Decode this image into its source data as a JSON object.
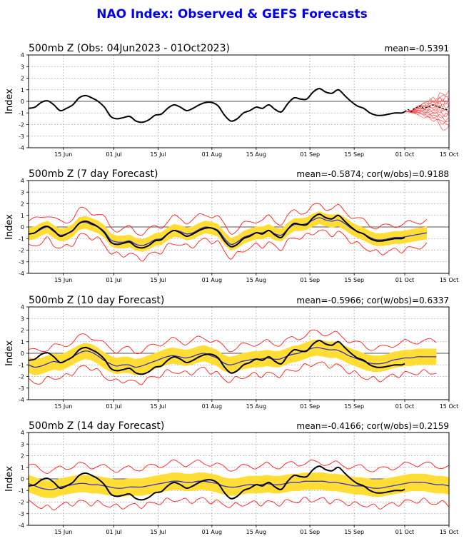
{
  "title": "NAO Index: Observed & GEFS Forecasts",
  "colors": {
    "title": "#0000ee",
    "observed": "#000000",
    "ensemble_mean": "#3333cc",
    "spread_band": "#ffdd33",
    "extreme_lines": "#ff1a1a",
    "ensemble_members": "#ff4d4d"
  },
  "chart_data": [
    {
      "type": "line",
      "title": "500mb Z (Obs: 04Jun2023 - 01Oct2023)",
      "stat": "mean=-0.5391",
      "ylabel": "Index",
      "xlim": [
        "2023-06-04",
        "2023-10-15"
      ],
      "ylim": [
        -4,
        4
      ],
      "yticks": [
        -4,
        -3,
        -2,
        -1,
        0,
        1,
        2,
        3,
        4
      ],
      "xticks": [
        {
          "date": "2023-06-15",
          "label": "15 Jun"
        },
        {
          "date": "2023-07-01",
          "label": "01 Jul"
        },
        {
          "date": "2023-07-15",
          "label": "15 Jul"
        },
        {
          "date": "2023-08-01",
          "label": "01 Aug"
        },
        {
          "date": "2023-08-15",
          "label": "15 Aug"
        },
        {
          "date": "2023-09-01",
          "label": "01 Sep"
        },
        {
          "date": "2023-09-15",
          "label": "15 Sep"
        },
        {
          "date": "2023-10-01",
          "label": "01 Oct"
        },
        {
          "date": "2023-10-15",
          "label": "15 Oct"
        }
      ],
      "grid": true,
      "observed": {
        "x": [
          "2023-06-04",
          "2023-06-06",
          "2023-06-08",
          "2023-06-10",
          "2023-06-12",
          "2023-06-14",
          "2023-06-16",
          "2023-06-18",
          "2023-06-20",
          "2023-06-22",
          "2023-06-24",
          "2023-06-26",
          "2023-06-28",
          "2023-06-30",
          "2023-07-02",
          "2023-07-04",
          "2023-07-06",
          "2023-07-08",
          "2023-07-10",
          "2023-07-12",
          "2023-07-14",
          "2023-07-16",
          "2023-07-18",
          "2023-07-20",
          "2023-07-22",
          "2023-07-24",
          "2023-07-26",
          "2023-07-28",
          "2023-07-30",
          "2023-08-01",
          "2023-08-03",
          "2023-08-05",
          "2023-08-07",
          "2023-08-09",
          "2023-08-11",
          "2023-08-13",
          "2023-08-15",
          "2023-08-17",
          "2023-08-19",
          "2023-08-21",
          "2023-08-23",
          "2023-08-25",
          "2023-08-27",
          "2023-08-29",
          "2023-08-31",
          "2023-09-02",
          "2023-09-04",
          "2023-09-06",
          "2023-09-08",
          "2023-09-10",
          "2023-09-12",
          "2023-09-14",
          "2023-09-16",
          "2023-09-18",
          "2023-09-20",
          "2023-09-22",
          "2023-09-24",
          "2023-09-26",
          "2023-09-28",
          "2023-09-30",
          "2023-10-01"
        ],
        "y": [
          -0.6,
          -0.5,
          -0.1,
          0.05,
          -0.3,
          -0.8,
          -0.6,
          -0.3,
          0.3,
          0.5,
          0.3,
          0.0,
          -0.5,
          -1.3,
          -1.5,
          -1.4,
          -1.3,
          -1.7,
          -1.8,
          -1.6,
          -1.2,
          -1.1,
          -0.6,
          -0.3,
          -0.5,
          -0.8,
          -0.6,
          -0.3,
          -0.1,
          -0.1,
          -0.4,
          -1.2,
          -1.7,
          -1.5,
          -1.0,
          -0.8,
          -0.5,
          -0.6,
          -0.3,
          -0.7,
          -0.9,
          -0.2,
          0.3,
          0.2,
          0.2,
          0.8,
          1.1,
          0.8,
          0.7,
          1.0,
          0.5,
          0.0,
          -0.4,
          -0.6,
          -1.0,
          -1.2,
          -1.2,
          -1.1,
          -1.0,
          -1.0,
          -0.9
        ]
      },
      "ensemble": {
        "x_start": "2023-10-01",
        "x_end": "2023-10-15",
        "mean": [
          -0.9,
          -0.7,
          -0.9,
          -0.6,
          -0.5,
          -0.4,
          -0.6,
          -0.5,
          -0.4,
          -0.3,
          -0.4,
          -0.5,
          -0.6,
          -0.7,
          -0.8
        ],
        "upper": [
          -0.8,
          -0.4,
          -0.3,
          0.2,
          0.5,
          0.8,
          0.9,
          0.6,
          1.0,
          0.8,
          0.6,
          1.0,
          0.9,
          0.8,
          0.7
        ],
        "lower": [
          -1.0,
          -1.0,
          -1.3,
          -1.4,
          -1.6,
          -1.7,
          -1.9,
          -1.8,
          -2.0,
          -2.1,
          -1.9,
          -2.2,
          -2.4,
          -2.3,
          -2.1
        ]
      }
    },
    {
      "type": "line",
      "title": "500mb Z (7 day Forecast)",
      "stat": "mean=-0.5874; cor(w/obs)=0.9188",
      "ylabel": "Index",
      "xlim": [
        "2023-06-04",
        "2023-10-15"
      ],
      "ylim": [
        -4,
        4
      ],
      "yticks": [
        -4,
        -3,
        -2,
        -1,
        0,
        1,
        2,
        3,
        4
      ],
      "xticks": [
        {
          "date": "2023-06-15",
          "label": "15 Jun"
        },
        {
          "date": "2023-07-01",
          "label": "01 Jul"
        },
        {
          "date": "2023-07-15",
          "label": "15 Jul"
        },
        {
          "date": "2023-08-01",
          "label": "01 Aug"
        },
        {
          "date": "2023-08-15",
          "label": "15 Aug"
        },
        {
          "date": "2023-09-01",
          "label": "01 Sep"
        },
        {
          "date": "2023-09-15",
          "label": "15 Sep"
        },
        {
          "date": "2023-10-01",
          "label": "01 Oct"
        },
        {
          "date": "2023-10-15",
          "label": "15 Oct"
        }
      ],
      "grid": true,
      "forecast": {
        "x_start": "2023-06-04",
        "x_end": "2023-10-08",
        "mean": [
          -0.6,
          -0.5,
          -0.2,
          0.0,
          -0.4,
          -0.7,
          -0.6,
          -0.3,
          0.3,
          0.4,
          0.2,
          0.0,
          -0.4,
          -1.1,
          -1.3,
          -1.3,
          -1.2,
          -1.5,
          -1.6,
          -1.4,
          -1.1,
          -1.0,
          -0.6,
          -0.3,
          -0.4,
          -0.6,
          -0.5,
          -0.2,
          0.0,
          -0.1,
          -0.3,
          -1.0,
          -1.5,
          -1.3,
          -0.9,
          -0.7,
          -0.5,
          -0.5,
          -0.3,
          -0.6,
          -0.7,
          -0.2,
          0.2,
          0.2,
          0.3,
          0.6,
          0.8,
          0.6,
          0.5,
          0.6,
          0.3,
          -0.1,
          -0.4,
          -0.6,
          -0.9,
          -1.1,
          -1.1,
          -1.0,
          -0.9,
          -0.9,
          -0.8,
          -0.7,
          -0.6,
          -0.5
        ],
        "band_halfwidth": 0.55,
        "extreme_halfwidth": 1.1
      }
    },
    {
      "type": "line",
      "title": "500mb Z (10 day Forecast)",
      "stat": "mean=-0.5966; cor(w/obs)=0.6337",
      "ylabel": "Index",
      "xlim": [
        "2023-06-04",
        "2023-10-15"
      ],
      "ylim": [
        -4,
        4
      ],
      "yticks": [
        -4,
        -3,
        -2,
        -1,
        0,
        1,
        2,
        3,
        4
      ],
      "xticks": [
        {
          "date": "2023-06-15",
          "label": "15 Jun"
        },
        {
          "date": "2023-07-01",
          "label": "01 Jul"
        },
        {
          "date": "2023-07-15",
          "label": "15 Jul"
        },
        {
          "date": "2023-08-01",
          "label": "01 Aug"
        },
        {
          "date": "2023-08-15",
          "label": "15 Aug"
        },
        {
          "date": "2023-09-01",
          "label": "01 Sep"
        },
        {
          "date": "2023-09-15",
          "label": "15 Sep"
        },
        {
          "date": "2023-10-01",
          "label": "01 Oct"
        },
        {
          "date": "2023-10-15",
          "label": "15 Oct"
        }
      ],
      "grid": true,
      "forecast": {
        "x_start": "2023-06-04",
        "x_end": "2023-10-11",
        "mean": [
          -1.0,
          -1.2,
          -1.1,
          -0.9,
          -0.7,
          -0.8,
          -0.6,
          -0.3,
          0.0,
          0.2,
          0.1,
          -0.2,
          -0.6,
          -0.9,
          -1.1,
          -1.0,
          -1.0,
          -1.2,
          -1.1,
          -0.9,
          -0.7,
          -0.5,
          -0.3,
          -0.2,
          -0.3,
          -0.4,
          -0.3,
          -0.1,
          0.0,
          -0.2,
          -0.4,
          -0.8,
          -1.0,
          -0.9,
          -0.7,
          -0.6,
          -0.5,
          -0.5,
          -0.4,
          -0.5,
          -0.5,
          -0.3,
          -0.1,
          0.0,
          0.2,
          0.4,
          0.5,
          0.4,
          0.3,
          0.3,
          0.1,
          -0.2,
          -0.4,
          -0.6,
          -0.8,
          -0.9,
          -0.9,
          -0.8,
          -0.6,
          -0.5,
          -0.4,
          -0.4,
          -0.3,
          -0.3,
          -0.3,
          -0.3
        ],
        "band_halfwidth": 0.7,
        "extreme_halfwidth": 1.35
      }
    },
    {
      "type": "line",
      "title": "500mb Z (14 day Forecast)",
      "stat": "mean=-0.4166; cor(w/obs)=0.2159",
      "ylabel": "Index",
      "xlim": [
        "2023-06-04",
        "2023-10-15"
      ],
      "ylim": [
        -4,
        4
      ],
      "yticks": [
        -4,
        -3,
        -2,
        -1,
        0,
        1,
        2,
        3,
        4
      ],
      "xticks": [
        {
          "date": "2023-06-15",
          "label": "15 Jun"
        },
        {
          "date": "2023-07-01",
          "label": "01 Jul"
        },
        {
          "date": "2023-07-15",
          "label": "15 Jul"
        },
        {
          "date": "2023-08-01",
          "label": "01 Aug"
        },
        {
          "date": "2023-08-15",
          "label": "15 Aug"
        },
        {
          "date": "2023-09-01",
          "label": "01 Sep"
        },
        {
          "date": "2023-09-15",
          "label": "15 Sep"
        },
        {
          "date": "2023-10-01",
          "label": "01 Oct"
        },
        {
          "date": "2023-10-15",
          "label": "15 Oct"
        }
      ],
      "grid": true,
      "forecast": {
        "x_start": "2023-06-04",
        "x_end": "2023-10-15",
        "mean": [
          -0.4,
          -0.6,
          -0.8,
          -0.9,
          -0.9,
          -0.7,
          -0.6,
          -0.5,
          -0.4,
          -0.4,
          -0.5,
          -0.5,
          -0.6,
          -0.7,
          -0.8,
          -0.8,
          -0.7,
          -0.7,
          -0.7,
          -0.6,
          -0.5,
          -0.4,
          -0.3,
          -0.2,
          -0.2,
          -0.3,
          -0.3,
          -0.2,
          -0.2,
          -0.3,
          -0.4,
          -0.6,
          -0.7,
          -0.7,
          -0.6,
          -0.5,
          -0.5,
          -0.5,
          -0.4,
          -0.5,
          -0.5,
          -0.4,
          -0.3,
          -0.3,
          -0.2,
          -0.2,
          -0.2,
          -0.2,
          -0.3,
          -0.3,
          -0.4,
          -0.5,
          -0.6,
          -0.6,
          -0.7,
          -0.8,
          -0.8,
          -0.7,
          -0.6,
          -0.5,
          -0.4,
          -0.3,
          -0.3,
          -0.3,
          -0.4,
          -0.5,
          -0.5,
          -0.6
        ],
        "band_halfwidth": 0.75,
        "extreme_halfwidth": 1.6
      }
    }
  ]
}
